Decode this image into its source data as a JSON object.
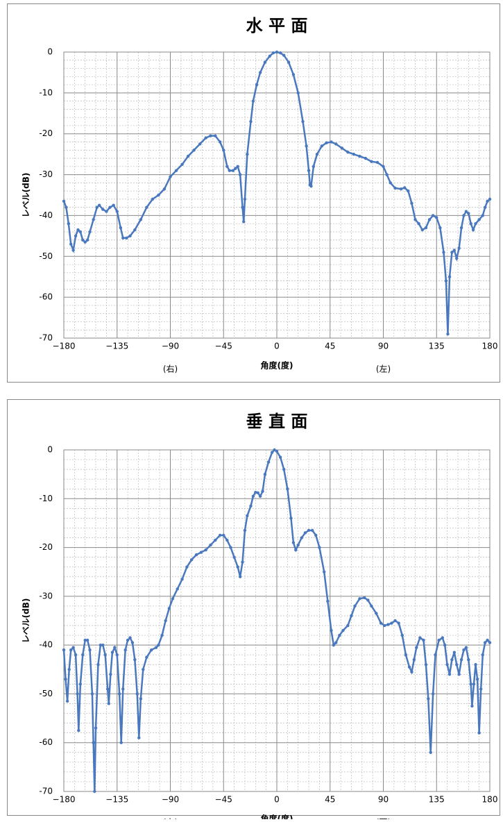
{
  "chart_data": [
    {
      "type": "line",
      "title": "水 平 面",
      "xlabel": "角度(度)",
      "ylabel": "レベル(dB)",
      "annotations": [
        "(右)",
        "(左)"
      ],
      "color": "#4a78be",
      "grid": true,
      "minor_grid_divisions": 5,
      "xlim": [
        -180,
        180
      ],
      "ylim": [
        -70,
        0
      ],
      "xticks": [
        {
          "value": -180,
          "label": "−180"
        },
        {
          "value": -135,
          "label": "−135"
        },
        {
          "value": -90,
          "label": "−90"
        },
        {
          "value": -45,
          "label": "−45"
        },
        0,
        45,
        90,
        135,
        180
      ],
      "yticks": [
        0,
        -10,
        -20,
        -30,
        -40,
        -50,
        -60,
        -70
      ],
      "x": [
        -180,
        -178,
        -176,
        -174,
        -172,
        -170,
        -168,
        -166,
        -164,
        -162,
        -160,
        -158,
        -155,
        -152,
        -150,
        -147,
        -144,
        -141,
        -138,
        -135,
        -132,
        -130,
        -127,
        -124,
        -120,
        -115,
        -110,
        -105,
        -100,
        -95,
        -90,
        -85,
        -80,
        -75,
        -70,
        -65,
        -60,
        -56,
        -52,
        -48,
        -45,
        -42,
        -40,
        -37,
        -35,
        -33,
        -31,
        -29,
        -28,
        -27,
        -25,
        -22,
        -20,
        -17,
        -14,
        -10,
        -6,
        -3,
        0,
        3,
        6,
        10,
        14,
        18,
        22,
        25,
        27,
        28,
        29,
        31,
        34,
        38,
        42,
        46,
        50,
        55,
        60,
        65,
        70,
        75,
        80,
        85,
        90,
        93,
        96,
        100,
        105,
        108,
        111,
        114,
        117,
        120,
        123,
        126,
        129,
        132,
        135,
        138,
        141,
        143,
        144.5,
        146,
        148,
        150,
        152,
        154,
        156,
        158,
        160,
        162,
        164,
        166,
        168,
        171,
        174,
        176,
        178,
        180
      ],
      "values": [
        -36.5,
        -38,
        -42,
        -47,
        -48.5,
        -45,
        -43.5,
        -44,
        -46,
        -46.5,
        -46,
        -44,
        -41,
        -38,
        -37.5,
        -38.5,
        -39,
        -38,
        -37.5,
        -39,
        -43,
        -45.5,
        -45.5,
        -45,
        -43.5,
        -41,
        -38,
        -36,
        -35,
        -33.5,
        -30.5,
        -29,
        -27.5,
        -25.5,
        -24,
        -22.5,
        -21,
        -20.5,
        -20.5,
        -22,
        -24,
        -28,
        -29,
        -29,
        -28.5,
        -28,
        -30,
        -38,
        -41.5,
        -36,
        -25,
        -17,
        -12,
        -8,
        -5,
        -2.5,
        -1,
        -0.2,
        0,
        -0.2,
        -0.8,
        -2.5,
        -5.5,
        -10,
        -17,
        -23,
        -29,
        -32.5,
        -32.8,
        -28,
        -25,
        -23,
        -22.2,
        -22,
        -22.5,
        -23.5,
        -24.5,
        -25,
        -25.5,
        -26,
        -26.8,
        -27,
        -28,
        -30,
        -32,
        -33.3,
        -33.5,
        -33.2,
        -34,
        -37,
        -41,
        -42,
        -43.5,
        -43,
        -41,
        -40,
        -40.5,
        -43,
        -49,
        -56,
        -69,
        -55,
        -49,
        -48.5,
        -50.5,
        -48,
        -43,
        -40,
        -39,
        -39.5,
        -42,
        -43.5,
        -42,
        -41,
        -40,
        -38,
        -36.5,
        -36
      ]
    },
    {
      "type": "line",
      "title": "垂 直 面",
      "xlabel": "角度(度)",
      "ylabel": "レベル(dB)",
      "annotations": [
        "(上)",
        "(下)"
      ],
      "color": "#4a78be",
      "grid": true,
      "minor_grid_divisions": 5,
      "xlim": [
        -180,
        180
      ],
      "ylim": [
        -70,
        0
      ],
      "xticks": [
        {
          "value": -180,
          "label": "−180"
        },
        {
          "value": -135,
          "label": "−135"
        },
        {
          "value": -90,
          "label": "−90"
        },
        {
          "value": -45,
          "label": "−45"
        },
        0,
        45,
        90,
        135,
        180
      ],
      "yticks": [
        0,
        -10,
        -20,
        -30,
        -40,
        -50,
        -60,
        -70
      ],
      "x": [
        -180,
        -178.5,
        -177,
        -175.5,
        -174,
        -172,
        -170,
        -168.5,
        -167.5,
        -166,
        -164,
        -162,
        -160,
        -158,
        -156,
        -155,
        -154,
        -153,
        -151,
        -149,
        -147,
        -145,
        -143,
        -142,
        -140.5,
        -139,
        -137,
        -135,
        -133,
        -131.5,
        -130,
        -128,
        -126,
        -124,
        -122,
        -120,
        -118,
        -116.5,
        -115,
        -113,
        -110,
        -106,
        -102,
        -100,
        -97,
        -94,
        -91,
        -88,
        -84,
        -80,
        -76,
        -72,
        -68,
        -64,
        -60,
        -56,
        -52,
        -48,
        -45,
        -42,
        -39,
        -36,
        -33,
        -31,
        -29,
        -27,
        -25,
        -22,
        -20,
        -18,
        -16,
        -14,
        -12,
        -10,
        -7,
        -4,
        -2,
        0,
        3,
        6,
        9,
        12,
        14,
        16,
        18,
        21,
        24,
        27,
        30,
        33,
        36,
        40,
        43,
        46,
        48,
        50,
        53,
        56,
        60,
        63,
        66,
        70,
        74,
        77,
        80,
        84,
        88,
        91,
        94,
        97,
        100,
        103,
        106,
        109,
        112,
        114,
        116,
        118,
        121,
        124,
        126,
        128,
        130,
        132,
        134,
        137,
        140,
        142,
        144,
        146,
        148,
        150,
        152,
        154,
        156,
        158,
        160,
        162,
        164,
        165,
        166.5,
        168,
        169.5,
        171,
        172.5,
        174,
        176,
        178,
        180
      ],
      "values": [
        -41,
        -47,
        -51.5,
        -45,
        -41,
        -40.5,
        -42,
        -50,
        -57.5,
        -48,
        -42,
        -39,
        -39,
        -41,
        -50,
        -60,
        -70,
        -57,
        -44,
        -40,
        -40,
        -42,
        -49,
        -52,
        -46,
        -41.5,
        -40.5,
        -42,
        -50,
        -60,
        -49,
        -41,
        -39,
        -38.5,
        -39.5,
        -43,
        -50,
        -59,
        -51,
        -45,
        -42.5,
        -41,
        -40.5,
        -40,
        -38,
        -35,
        -32.5,
        -30.5,
        -28.5,
        -26.5,
        -24,
        -22.5,
        -21.5,
        -21,
        -20.5,
        -19.5,
        -18.5,
        -17.5,
        -17.5,
        -18.5,
        -20,
        -22,
        -24,
        -26,
        -23,
        -16.5,
        -13.5,
        -11.5,
        -9.5,
        -8.7,
        -8.8,
        -9.5,
        -8.5,
        -5,
        -2.5,
        -0.5,
        0,
        -0.3,
        -1.5,
        -4,
        -8,
        -14,
        -19,
        -20.5,
        -19.5,
        -18,
        -17,
        -16.5,
        -16.5,
        -17.5,
        -20,
        -25,
        -31,
        -37,
        -40,
        -39.5,
        -38,
        -37,
        -36,
        -34,
        -32,
        -30.5,
        -30.3,
        -30.8,
        -32,
        -33.5,
        -35.5,
        -36,
        -35.8,
        -35.5,
        -35,
        -35.5,
        -38,
        -42,
        -44.5,
        -45.5,
        -43,
        -40.5,
        -38.5,
        -39,
        -44,
        -51,
        -62,
        -50,
        -42,
        -39,
        -38.5,
        -40,
        -44,
        -46,
        -43,
        -41.5,
        -44,
        -46,
        -43,
        -41,
        -40.5,
        -43,
        -48,
        -52.5,
        -48,
        -44,
        -47,
        -58,
        -49,
        -42,
        -39.5,
        -39,
        -39.5
      ]
    }
  ]
}
